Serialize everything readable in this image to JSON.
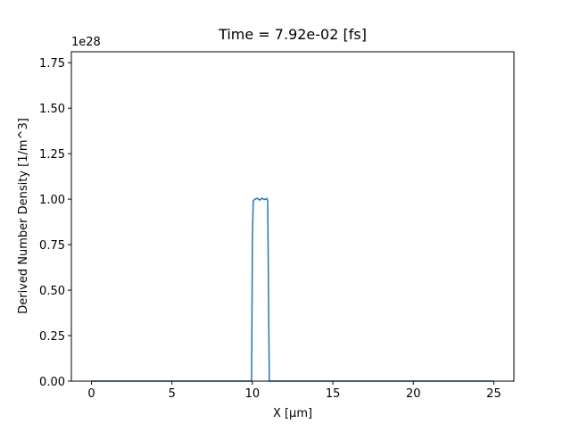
{
  "chart_data": {
    "type": "line",
    "title": "Time = 7.92e-02 [fs]",
    "x_label": "X [μm]",
    "y_label": "Derived Number Density [1/m^3]",
    "y_offset_label": "1e28",
    "x": [
      0,
      9.95,
      10.0,
      10.05,
      10.15,
      10.3,
      10.45,
      10.6,
      10.75,
      10.9,
      10.95,
      11.0,
      11.05,
      25
    ],
    "series": [
      {
        "color": "#1f77b4",
        "values": [
          0,
          0,
          0.78,
          0.99,
          1.0,
          1.005,
          0.995,
          1.005,
          0.998,
          1.003,
          0.99,
          0.5,
          0,
          0
        ]
      }
    ],
    "xlim": [
      -1.25,
      26.25
    ],
    "ylim": [
      0,
      1.81
    ],
    "xticks": [
      0,
      5,
      10,
      15,
      20,
      25
    ],
    "yticks": [
      {
        "value": 0,
        "label": "0.00"
      },
      {
        "value": 0.25,
        "label": "0.25"
      },
      {
        "value": 0.5,
        "label": "0.50"
      },
      {
        "value": 0.75,
        "label": "0.75"
      },
      {
        "value": 1.0,
        "label": "1.00"
      },
      {
        "value": 1.25,
        "label": "1.25"
      },
      {
        "value": 1.5,
        "label": "1.50"
      },
      {
        "value": 1.75,
        "label": "1.75"
      }
    ]
  }
}
